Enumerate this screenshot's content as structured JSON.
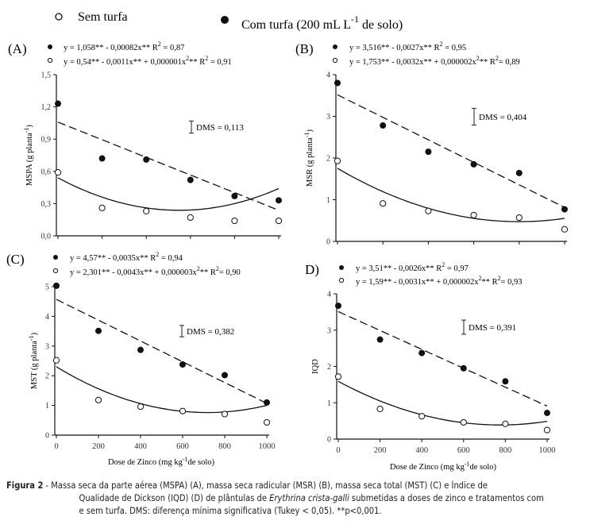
{
  "legend": {
    "open_label": "Sem turfa",
    "filled_label_prefix": "Com turfa (200 mL L",
    "filled_label_sup": "-1",
    "filled_label_suffix": " de solo)"
  },
  "xaxis_label_prefix": "Dose de Zinco (mg kg",
  "xaxis_label_sup": "-1",
  "xaxis_label_suffix": "de solo)",
  "caption": {
    "label": "Figura 2",
    "line1": " - Massa seca da parte aérea (MSPA) (A), massa seca radicular (MSR) (B), massa seca total (MST) (C) e Índice de",
    "line2_a": "Qualidade de Dickson (IQD) (D) de plântulas de ",
    "line2_italic": "Erythrina crista-galli",
    "line2_b": " submetidas a doses de zinco e tratamentos com",
    "line3": "e sem turfa. DMS: diferença mínima significativa (Tukey < 0,05). **p<0,001."
  },
  "chart_data": [
    {
      "type": "scatter",
      "panel": "(A)",
      "ylabel": "MSPA (g planta",
      "ylabel_sup": "-1",
      "ylabel_suffix": ")",
      "xlabel": "",
      "x": [
        0,
        200,
        400,
        600,
        800,
        1000
      ],
      "xlim": [
        0,
        1000
      ],
      "ylim": [
        0,
        1.5
      ],
      "yticks": [
        0,
        0.3,
        0.6,
        0.9,
        1.2,
        1.5
      ],
      "ytick_labels": [
        "0,0",
        "0,3",
        "0,6",
        "0,9",
        "1,2",
        "1,5"
      ],
      "xtick_labels": [],
      "dms": "DMS = 0,113",
      "dms_value": 0.113,
      "series": [
        {
          "name": "Com turfa",
          "marker": "filled",
          "values": [
            1.23,
            0.72,
            0.71,
            0.52,
            0.37,
            0.33
          ],
          "equation": "y = 1,058** - 0,00082x**  R",
          "r2": " = 0,87",
          "fit": {
            "a": 1.058,
            "b": -0.00082,
            "c": 0
          },
          "line": "dashed"
        },
        {
          "name": "Sem turfa",
          "marker": "open",
          "values": [
            0.59,
            0.26,
            0.23,
            0.17,
            0.14,
            0.14
          ],
          "equation": "y = 0,54** - 0,0011x** + 0,000001x",
          "eq_tail": "** R",
          "r2": " = 0,91",
          "fit": {
            "a": 0.54,
            "b": -0.0011,
            "c": 1e-06
          },
          "line": "solid"
        }
      ]
    },
    {
      "type": "scatter",
      "panel": "(B)",
      "ylabel": "MSR (g planta",
      "ylabel_sup": "-1",
      "ylabel_suffix": ")",
      "xlabel": "",
      "x": [
        0,
        200,
        400,
        600,
        800,
        1000
      ],
      "xlim": [
        0,
        1000
      ],
      "ylim": [
        0,
        4
      ],
      "yticks": [
        0,
        1,
        2,
        3,
        4
      ],
      "ytick_labels": [
        "0",
        "1",
        "2",
        "3",
        "4"
      ],
      "xtick_labels": [],
      "dms": "DMS = 0,404",
      "dms_value": 0.404,
      "series": [
        {
          "name": "Com turfa",
          "marker": "filled",
          "values": [
            3.8,
            2.78,
            2.15,
            1.85,
            1.64,
            0.77
          ],
          "equation": "y = 3,516** - 0,0027x**    R",
          "r2": " = 0,95",
          "fit": {
            "a": 3.516,
            "b": -0.0027,
            "c": 0
          },
          "line": "dashed"
        },
        {
          "name": "Sem turfa",
          "marker": "open",
          "values": [
            1.93,
            0.91,
            0.73,
            0.63,
            0.57,
            0.29
          ],
          "equation": "y = 1,753** - 0,0032x** + 0,000002x",
          "eq_tail": "** R",
          "r2": "= 0,89",
          "fit": {
            "a": 1.753,
            "b": -0.0032,
            "c": 2e-06
          },
          "line": "solid"
        }
      ]
    },
    {
      "type": "scatter",
      "panel": "(C)",
      "ylabel": "MST (g planta",
      "ylabel_sup": "-1",
      "ylabel_suffix": ")",
      "xlabel": "Dose de Zinco (mg kg-1 de solo)",
      "x": [
        0,
        200,
        400,
        600,
        800,
        1000
      ],
      "xlim": [
        0,
        1000
      ],
      "ylim": [
        0,
        5
      ],
      "yticks": [
        0,
        1,
        2,
        3,
        4,
        5
      ],
      "ytick_labels": [
        "0",
        "1",
        "2",
        "3",
        "4",
        "5"
      ],
      "xtick_labels": [
        "0",
        "200",
        "400",
        "600",
        "800",
        "1000"
      ],
      "dms": "DMS = 0,382",
      "dms_value": 0.382,
      "series": [
        {
          "name": "Com turfa",
          "marker": "filled",
          "values": [
            5.03,
            3.51,
            2.87,
            2.38,
            2.02,
            1.1
          ],
          "equation": "y = 4,57** - 0,0035x**  R",
          "r2": " = 0,94",
          "fit": {
            "a": 4.57,
            "b": -0.0035,
            "c": 0
          },
          "line": "dashed"
        },
        {
          "name": "Sem turfa",
          "marker": "open",
          "values": [
            2.52,
            1.18,
            0.96,
            0.81,
            0.71,
            0.43
          ],
          "equation": "y = 2,301** - 0,0043x** + 0,000003x",
          "eq_tail": "** R",
          "r2": "= 0,90",
          "fit": {
            "a": 2.301,
            "b": -0.0043,
            "c": 3e-06
          },
          "line": "solid"
        }
      ]
    },
    {
      "type": "scatter",
      "panel": "D)",
      "ylabel": "IQD",
      "ylabel_sup": "",
      "ylabel_suffix": "",
      "xlabel": "Dose de Zinco (mg kg-1 de solo)",
      "x": [
        0,
        200,
        400,
        600,
        800,
        1000
      ],
      "xlim": [
        0,
        1000
      ],
      "ylim": [
        0,
        4
      ],
      "yticks": [
        0,
        1,
        2,
        3,
        4
      ],
      "ytick_labels": [
        "0",
        "1",
        "2",
        "3",
        "4"
      ],
      "xtick_labels": [
        "0",
        "200",
        "400",
        "600",
        "800",
        "1000"
      ],
      "dms": "DMS = 0,391",
      "dms_value": 0.391,
      "series": [
        {
          "name": "Com turfa",
          "marker": "filled",
          "values": [
            3.67,
            2.74,
            2.37,
            1.95,
            1.59,
            0.72
          ],
          "equation": "y = 3,51** - 0,0026x**  R",
          "r2": " = 0,97",
          "fit": {
            "a": 3.51,
            "b": -0.0026,
            "c": 0
          },
          "line": "dashed"
        },
        {
          "name": "Sem turfa",
          "marker": "open",
          "values": [
            1.72,
            0.83,
            0.63,
            0.46,
            0.42,
            0.25
          ],
          "equation": "y = 1,59** - 0,0031x** + 0,000002x",
          "eq_tail": "** R",
          "r2": "= 0,93",
          "fit": {
            "a": 1.59,
            "b": -0.0031,
            "c": 2e-06
          },
          "line": "solid"
        }
      ]
    }
  ]
}
